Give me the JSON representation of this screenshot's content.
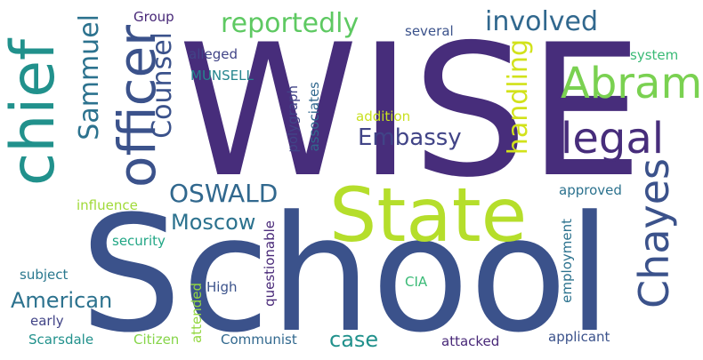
{
  "words": [
    {
      "text": "WISE",
      "color": "#472d7b"
    },
    {
      "text": "School",
      "color": "#3b528b"
    },
    {
      "text": "chief",
      "color": "#21918c"
    },
    {
      "text": "State",
      "color": "#b5de2b"
    },
    {
      "text": "officer",
      "color": "#3b528b"
    },
    {
      "text": "Abram",
      "color": "#7ad151"
    },
    {
      "text": "legal",
      "color": "#472d7b"
    },
    {
      "text": "Chayes",
      "color": "#3b528b"
    },
    {
      "text": "reportedly",
      "color": "#5ec962"
    },
    {
      "text": "involved",
      "color": "#31688e"
    },
    {
      "text": "Sammuel",
      "color": "#2c728e"
    },
    {
      "text": "Counsel",
      "color": "#3b528b"
    },
    {
      "text": "handling",
      "color": "#d2e21b"
    },
    {
      "text": "Embassy",
      "color": "#414487"
    },
    {
      "text": "OSWALD",
      "color": "#31688e"
    },
    {
      "text": "Moscow",
      "color": "#2c728e"
    },
    {
      "text": "American",
      "color": "#2c728e"
    },
    {
      "text": "case",
      "color": "#21918c"
    },
    {
      "text": "Group",
      "color": "#482878"
    },
    {
      "text": "several",
      "color": "#3b528b"
    },
    {
      "text": "alleged",
      "color": "#414487"
    },
    {
      "text": "MUNSELL",
      "color": "#25858e"
    },
    {
      "text": "polygraph",
      "color": "#414487"
    },
    {
      "text": "associates",
      "color": "#31688e"
    },
    {
      "text": "addition",
      "color": "#c8e020"
    },
    {
      "text": "system",
      "color": "#3aba76"
    },
    {
      "text": "approved",
      "color": "#2c728e"
    },
    {
      "text": "influence",
      "color": "#a0da39"
    },
    {
      "text": "security",
      "color": "#21a685"
    },
    {
      "text": "subject",
      "color": "#2a788e"
    },
    {
      "text": "questionable",
      "color": "#482878"
    },
    {
      "text": "attended",
      "color": "#93d741"
    },
    {
      "text": "High",
      "color": "#3b528b"
    },
    {
      "text": "CIA",
      "color": "#3aba76"
    },
    {
      "text": "early",
      "color": "#414487"
    },
    {
      "text": "employment",
      "color": "#2c728e"
    },
    {
      "text": "Scarsdale",
      "color": "#21918c"
    },
    {
      "text": "Citizen",
      "color": "#86d549"
    },
    {
      "text": "Communist",
      "color": "#31688e"
    },
    {
      "text": "attacked",
      "color": "#482878"
    },
    {
      "text": "applicant",
      "color": "#3b528b"
    }
  ]
}
